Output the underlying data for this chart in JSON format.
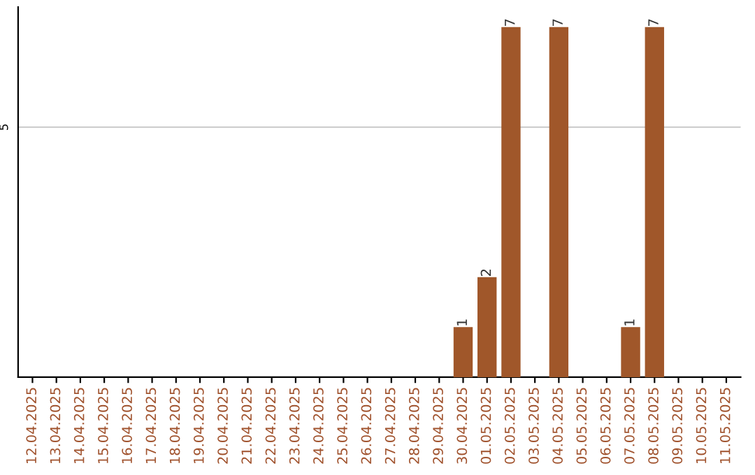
{
  "chart_data": {
    "type": "bar",
    "categories": [
      "12.04.2025",
      "13.04.2025",
      "14.04.2025",
      "15.04.2025",
      "16.04.2025",
      "17.04.2025",
      "18.04.2025",
      "19.04.2025",
      "20.04.2025",
      "21.04.2025",
      "22.04.2025",
      "23.04.2025",
      "24.04.2025",
      "25.04.2025",
      "26.04.2025",
      "27.04.2025",
      "28.04.2025",
      "29.04.2025",
      "30.04.2025",
      "01.05.2025",
      "02.05.2025",
      "03.05.2025",
      "04.05.2025",
      "05.05.2025",
      "06.05.2025",
      "07.05.2025",
      "08.05.2025",
      "09.05.2025",
      "10.05.2025",
      "11.05.2025"
    ],
    "values": [
      null,
      null,
      null,
      null,
      null,
      null,
      null,
      null,
      null,
      null,
      null,
      null,
      null,
      null,
      null,
      null,
      null,
      null,
      1,
      2,
      7,
      null,
      7,
      null,
      null,
      1,
      7,
      null,
      null,
      null
    ],
    "data_labels": true,
    "ylim": [
      0,
      7.4
    ],
    "color": "#a0572a",
    "ref_lines": [
      {
        "axis": "y",
        "value": 5,
        "label": "5",
        "color": "#cccccc"
      }
    ]
  }
}
